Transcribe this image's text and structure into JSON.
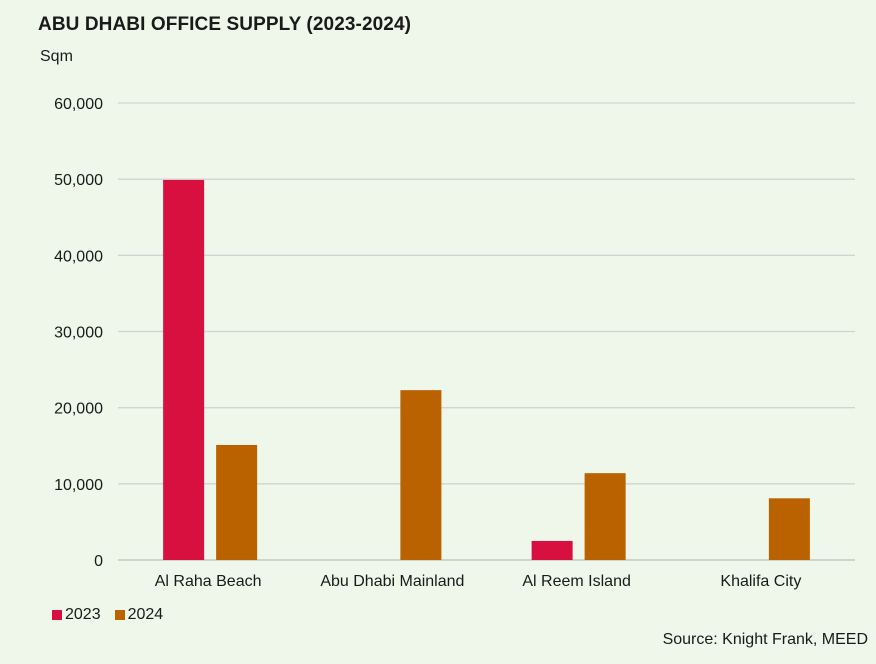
{
  "chart_data": {
    "type": "bar",
    "title": "ABU DHABI OFFICE SUPPLY (2023-2024)",
    "ylabel": "Sqm",
    "xlabel": "",
    "categories": [
      "Al Raha Beach",
      "Abu Dhabi Mainland",
      "Al Reem Island",
      "Khalifa City"
    ],
    "series": [
      {
        "name": "2023",
        "color": "#d8103f",
        "values": [
          49900,
          0,
          2500,
          0
        ]
      },
      {
        "name": "2024",
        "color": "#bb6200",
        "values": [
          15100,
          22300,
          11400,
          8100
        ]
      }
    ],
    "ylim": [
      0,
      60000
    ],
    "yticks": [
      0,
      10000,
      20000,
      30000,
      40000,
      50000,
      60000
    ],
    "ytick_labels": [
      "0",
      "10,000",
      "20,000",
      "30,000",
      "40,000",
      "50,000",
      "60,000"
    ],
    "grid": true,
    "legend_position": "bottom-left",
    "source": "Source: Knight Frank, MEED"
  }
}
